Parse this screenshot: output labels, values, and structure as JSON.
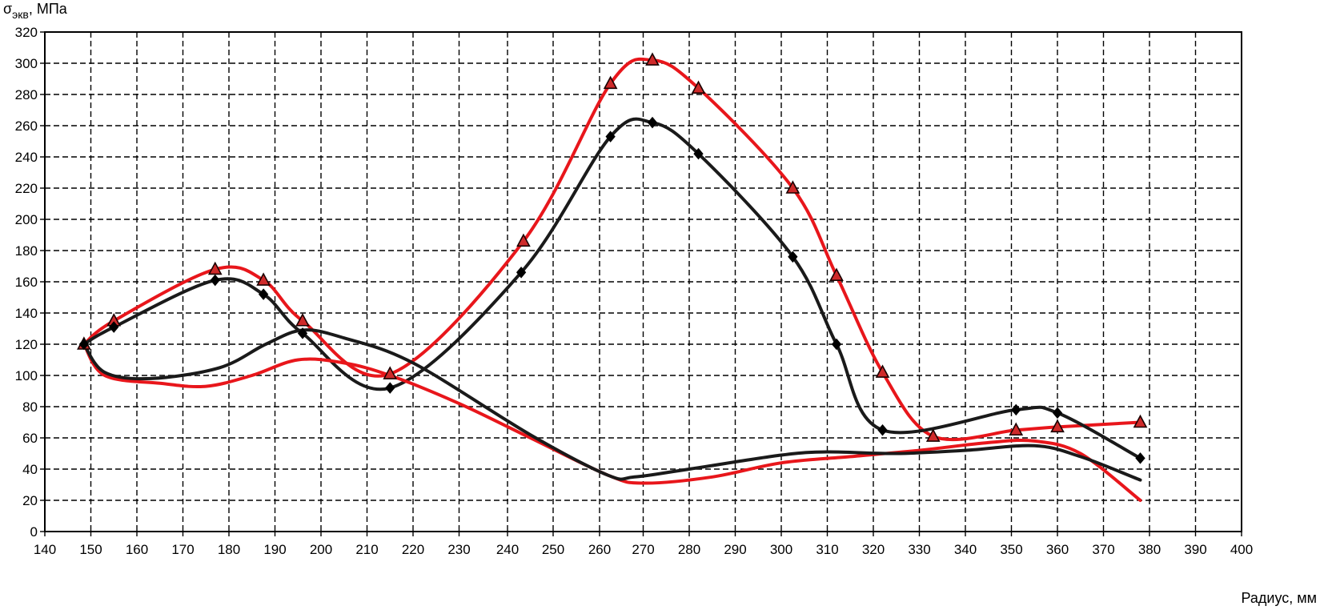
{
  "chart_data": {
    "type": "line",
    "ylabel": "σ",
    "ylabel_sub": "экв",
    "ylabel_unit": ", МПа",
    "xlabel": "Радиус, мм",
    "x_ticks": [
      140,
      150,
      160,
      170,
      180,
      190,
      200,
      210,
      220,
      230,
      240,
      250,
      260,
      270,
      280,
      290,
      300,
      310,
      320,
      330,
      340,
      350,
      360,
      370,
      380,
      390,
      400
    ],
    "y_ticks": [
      0,
      20,
      40,
      60,
      80,
      100,
      120,
      140,
      160,
      180,
      200,
      220,
      240,
      260,
      280,
      300,
      320
    ],
    "ylim": [
      0,
      320
    ],
    "grid": true,
    "series": [
      {
        "color": "#e8161b",
        "marker": "triangle",
        "points": [
          [
            148.5,
            120
          ],
          [
            155,
            135
          ],
          [
            177,
            168
          ],
          [
            187.5,
            161
          ],
          [
            196,
            135
          ],
          [
            215,
            101
          ],
          [
            243.5,
            186
          ],
          [
            262.5,
            287
          ],
          [
            272,
            302
          ],
          [
            282,
            284
          ],
          [
            302.5,
            220
          ],
          [
            312,
            164
          ],
          [
            322,
            102
          ],
          [
            333,
            61
          ],
          [
            351,
            65
          ],
          [
            360,
            67
          ],
          [
            378,
            70
          ]
        ]
      },
      {
        "color": "#1a1a1a",
        "marker": "diamond",
        "points": [
          [
            148.5,
            120
          ],
          [
            155,
            131
          ],
          [
            177,
            161
          ],
          [
            187.5,
            152
          ],
          [
            196,
            127
          ],
          [
            215,
            92
          ],
          [
            243,
            166
          ],
          [
            262.5,
            253
          ],
          [
            272,
            262
          ],
          [
            282,
            242
          ],
          [
            302.5,
            176
          ],
          [
            312,
            120
          ],
          [
            322,
            65
          ],
          [
            351,
            78
          ],
          [
            360,
            76
          ],
          [
            378,
            47
          ]
        ]
      },
      {
        "color": "#e8161b",
        "marker": "none",
        "points": [
          [
            148.5,
            120
          ],
          [
            153,
            100
          ],
          [
            165,
            95
          ],
          [
            175,
            93
          ],
          [
            185,
            100
          ],
          [
            195,
            110
          ],
          [
            205,
            108
          ],
          [
            215,
            100
          ],
          [
            230,
            82
          ],
          [
            245,
            60
          ],
          [
            262,
            36
          ],
          [
            270,
            31
          ],
          [
            285,
            35
          ],
          [
            300,
            44
          ],
          [
            315,
            48
          ],
          [
            330,
            52
          ],
          [
            345,
            57
          ],
          [
            355,
            58
          ],
          [
            365,
            50
          ],
          [
            378,
            20
          ]
        ]
      },
      {
        "color": "#1a1a1a",
        "marker": "none",
        "points": [
          [
            148.5,
            120
          ],
          [
            153,
            102
          ],
          [
            163,
            98
          ],
          [
            178,
            105
          ],
          [
            188,
            120
          ],
          [
            196,
            129
          ],
          [
            205,
            124
          ],
          [
            220,
            108
          ],
          [
            245,
            62
          ],
          [
            262,
            36
          ],
          [
            268,
            35
          ],
          [
            280,
            40
          ],
          [
            300,
            49
          ],
          [
            310,
            51
          ],
          [
            325,
            50
          ],
          [
            340,
            52
          ],
          [
            355,
            55
          ],
          [
            365,
            48
          ],
          [
            378,
            33
          ]
        ]
      }
    ]
  }
}
